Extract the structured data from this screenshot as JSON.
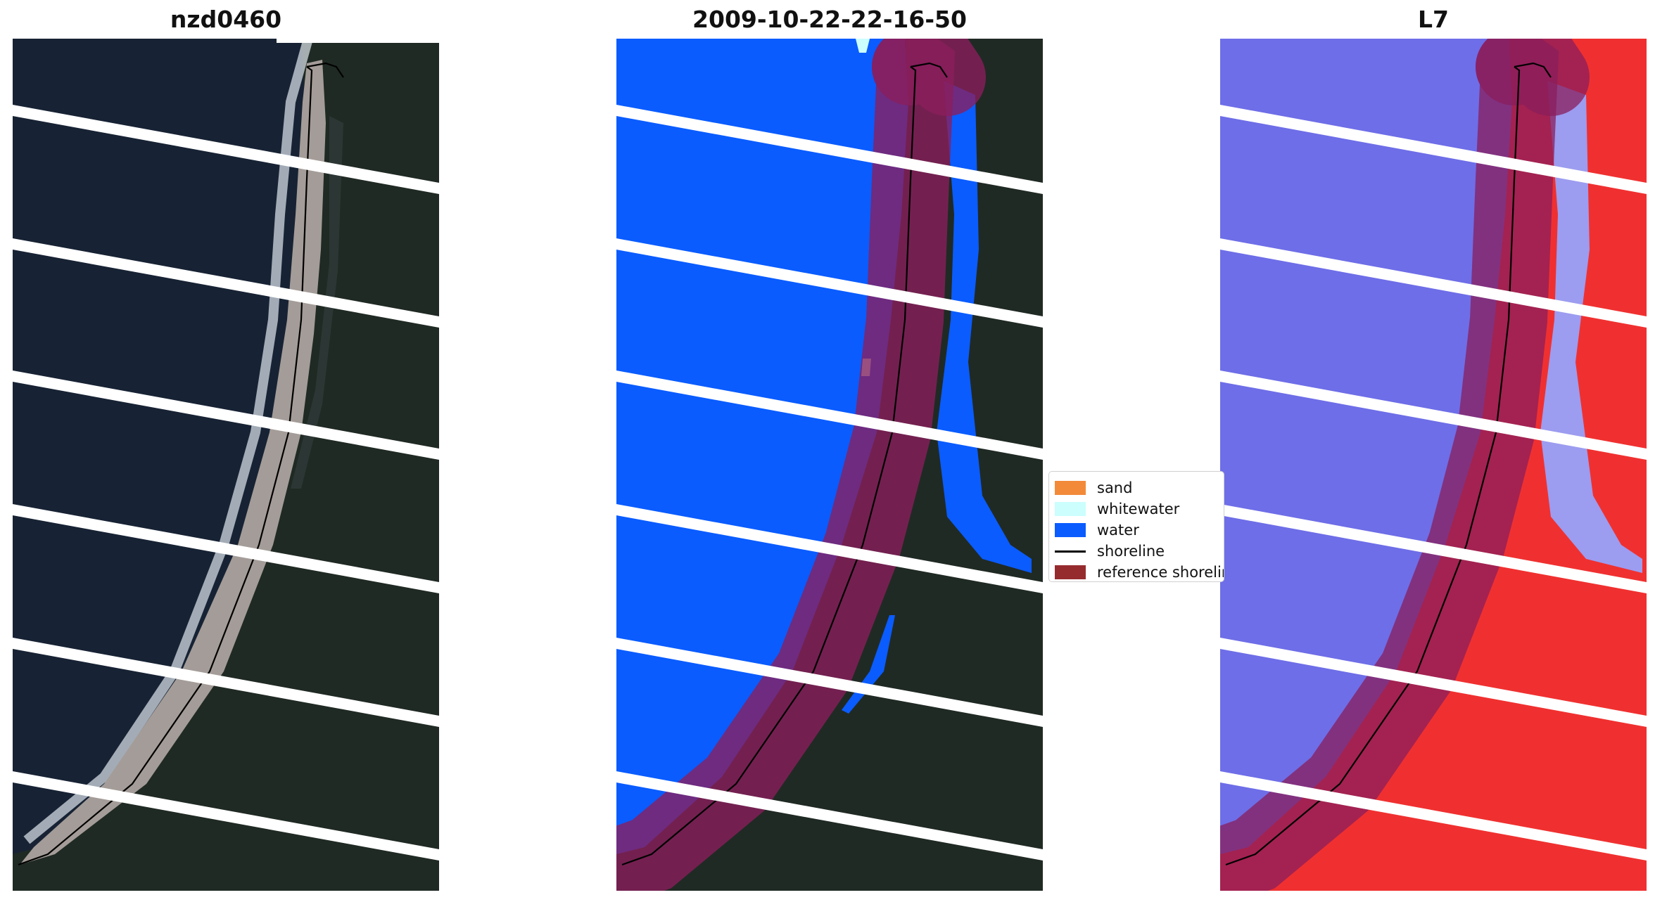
{
  "panels": [
    {
      "title": "nzd0460"
    },
    {
      "title": "2009-10-22-22-16-50"
    },
    {
      "title": "L7"
    }
  ],
  "legend": {
    "items": [
      {
        "label": "sand",
        "color": "#f28a3a",
        "kind": "patch"
      },
      {
        "label": "whitewater",
        "color": "#ccfefe",
        "kind": "patch"
      },
      {
        "label": "water",
        "color": "#0a5cff",
        "kind": "patch"
      },
      {
        "label": "shoreline",
        "color": "#000000",
        "kind": "line"
      },
      {
        "label": "reference shoreline",
        "color": "#962b2e",
        "kind": "patch"
      }
    ]
  },
  "colors": {
    "water_dark": "#1a2636",
    "beach": "#a49c98",
    "forest": "#1f2a22",
    "classified_water": "#0a5cff",
    "reference_buffer": "#8a1e5c",
    "index_water": "#6e6ee8",
    "index_land": "#f03030"
  }
}
